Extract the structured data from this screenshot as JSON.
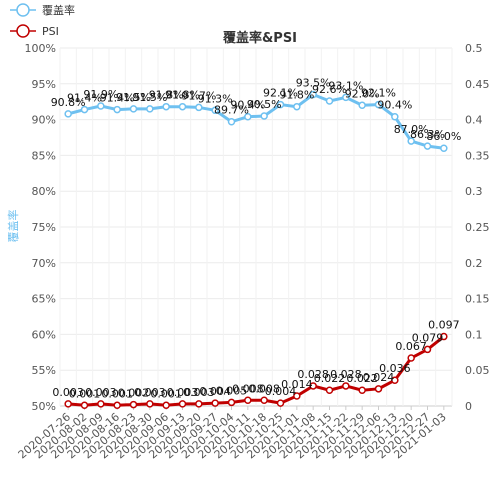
{
  "chart_data": {
    "type": "line",
    "title": "覆盖率&PSI",
    "left_ylabel": "覆盖率",
    "left_ylim": [
      0.5,
      1.0
    ],
    "right_ylim": [
      0,
      0.5
    ],
    "left_ticks": [
      "50%",
      "55%",
      "60%",
      "65%",
      "70%",
      "75%",
      "80%",
      "85%",
      "90%",
      "95%",
      "100%"
    ],
    "right_ticks": [
      "0",
      "0.05",
      "0.1",
      "0.15",
      "0.2",
      "0.25",
      "0.3",
      "0.35",
      "0.4",
      "0.45",
      "0.5"
    ],
    "legend_position": "top-left",
    "grid": true,
    "x": [
      "2020-07-26",
      "2020-08-02",
      "2020-08-09",
      "2020-08-16",
      "2020-08-23",
      "2020-08-30",
      "2020-09-06",
      "2020-09-13",
      "2020-09-20",
      "2020-09-27",
      "2020-10-04",
      "2020-10-11",
      "2020-10-18",
      "2020-10-25",
      "2020-11-01",
      "2020-11-08",
      "2020-11-15",
      "2020-11-22",
      "2020-11-29",
      "2020-12-06",
      "2020-12-13",
      "2020-12-20",
      "2020-12-27",
      "2021-01-03"
    ],
    "series": [
      {
        "name": "覆盖率",
        "axis": "left",
        "color": "#6ec0f0",
        "values": [
          0.908,
          0.914,
          0.919,
          0.914,
          0.915,
          0.915,
          0.918,
          0.918,
          0.917,
          0.913,
          0.897,
          0.904,
          0.905,
          0.921,
          0.918,
          0.935,
          0.926,
          0.931,
          0.92,
          0.921,
          0.904,
          0.87,
          0.863,
          0.86
        ],
        "labels": [
          "90.8%",
          "91.4%",
          "91.9%",
          "91.4%",
          "91.5%",
          "91.5%",
          "91.8%",
          "91.8%",
          "91.7%",
          "91.3%",
          "89.7%",
          "90.4%",
          "90.5%",
          "92.1%",
          "91.8%",
          "93.5%",
          "92.6%",
          "93.1%",
          "92.0%",
          "92.1%",
          "90.4%",
          "87.0%",
          "86.3%",
          "86.0%"
        ]
      },
      {
        "name": "PSI",
        "axis": "right",
        "color": "#c00000",
        "values": [
          0.003,
          0.001,
          0.003,
          0.001,
          0.002,
          0.003,
          0.001,
          0.003,
          0.003,
          0.004,
          0.005,
          0.008,
          0.008,
          0.004,
          0.014,
          0.028,
          0.022,
          0.028,
          0.022,
          0.024,
          0.036,
          0.067,
          0.079,
          0.097
        ],
        "labels": [
          "0.003",
          "0.001",
          "0.003",
          "0.001",
          "0.002",
          "0.003",
          "0.001",
          "0.003",
          "0.003",
          "0.004",
          "0.005",
          "0.008",
          "0.008",
          "0.004",
          "0.014",
          "0.028",
          "0.022",
          "0.028",
          "0.022",
          "0.024",
          "0.036",
          "0.067",
          "0.079",
          "0.097"
        ]
      }
    ]
  }
}
